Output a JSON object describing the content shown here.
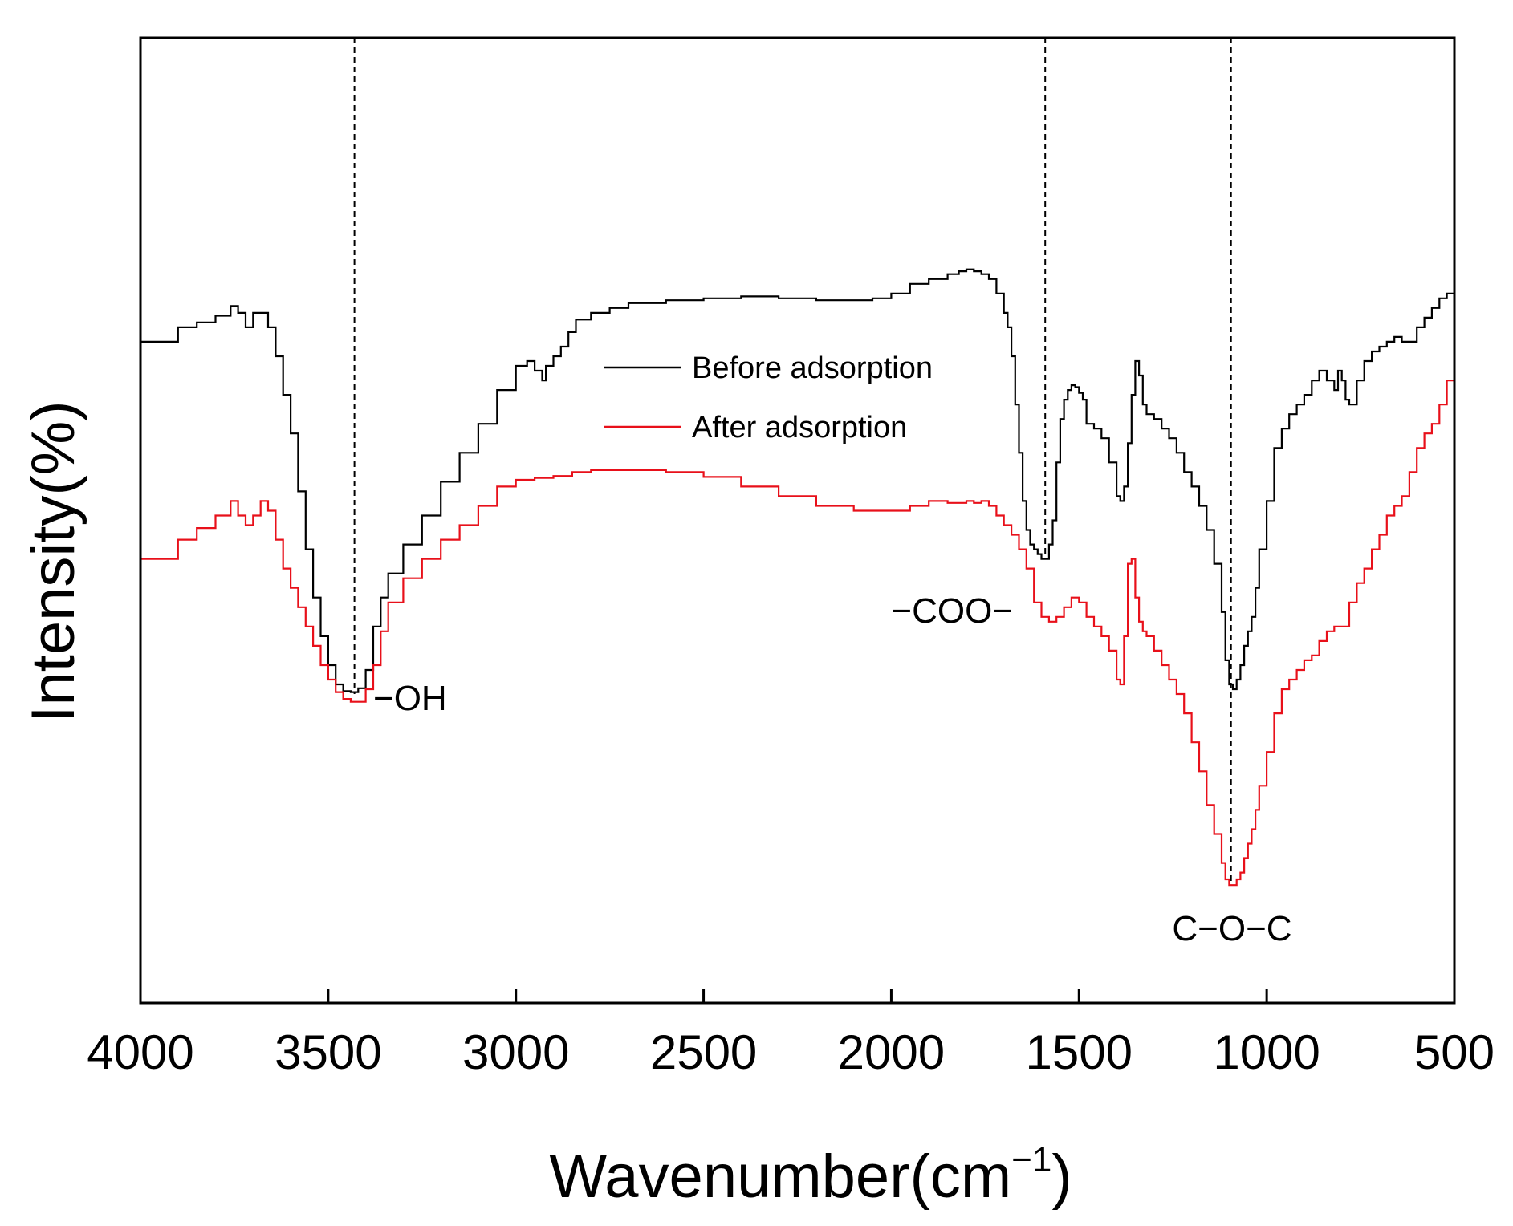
{
  "chart_data": {
    "type": "line",
    "title": "",
    "xlabel": "Wavenumber(cm",
    "xlabel_sup": "−1",
    "xlabel_close": ")",
    "ylabel": "Intensity(%)",
    "xlim": [
      4000,
      500
    ],
    "ylim": [
      0,
      100
    ],
    "x_reversed": true,
    "y_ticks_shown": false,
    "x_ticks": [
      4000,
      3500,
      3000,
      2500,
      2000,
      1500,
      1000,
      500
    ],
    "x_tick_labels": [
      "4000",
      "3500",
      "3000",
      "2500",
      "2000",
      "1500",
      "1000",
      "500"
    ],
    "grid": false,
    "legend": {
      "placement": "top-center"
    },
    "annotations": [
      {
        "text": "−OH",
        "x": 3430,
        "y": 32.0,
        "marker_line": true
      },
      {
        "text": "−COO−",
        "x": 1590,
        "y": 46.2,
        "marker_line": true
      },
      {
        "text": "C−O−C",
        "x": 1095,
        "y": 12.2,
        "marker_line": false
      }
    ],
    "series": [
      {
        "name": "Before adsorption",
        "color": "#000000",
        "x": [
          4000,
          3900,
          3850,
          3800,
          3760,
          3740,
          3720,
          3700,
          3680,
          3660,
          3640,
          3620,
          3600,
          3580,
          3560,
          3540,
          3520,
          3500,
          3480,
          3460,
          3440,
          3430,
          3420,
          3400,
          3380,
          3360,
          3340,
          3300,
          3250,
          3200,
          3150,
          3100,
          3050,
          3000,
          2970,
          2950,
          2930,
          2920,
          2900,
          2880,
          2860,
          2840,
          2800,
          2750,
          2700,
          2600,
          2500,
          2400,
          2350,
          2300,
          2200,
          2100,
          2050,
          2000,
          1950,
          1900,
          1850,
          1820,
          1800,
          1780,
          1760,
          1740,
          1720,
          1700,
          1690,
          1680,
          1670,
          1660,
          1650,
          1640,
          1630,
          1620,
          1610,
          1600,
          1590,
          1580,
          1570,
          1560,
          1550,
          1540,
          1530,
          1520,
          1510,
          1500,
          1490,
          1480,
          1460,
          1440,
          1420,
          1400,
          1390,
          1380,
          1370,
          1360,
          1350,
          1340,
          1330,
          1320,
          1300,
          1280,
          1260,
          1240,
          1220,
          1200,
          1180,
          1160,
          1140,
          1120,
          1110,
          1100,
          1090,
          1080,
          1070,
          1060,
          1050,
          1040,
          1030,
          1020,
          1000,
          980,
          960,
          940,
          920,
          900,
          880,
          860,
          840,
          820,
          810,
          800,
          790,
          780,
          760,
          740,
          720,
          700,
          680,
          660,
          640,
          620,
          600,
          580,
          560,
          540,
          520,
          500
        ],
        "y": [
          68.5,
          70,
          70.5,
          71.2,
          72.2,
          71.5,
          70,
          71.5,
          71.5,
          70,
          67,
          63,
          59,
          53,
          47,
          42,
          38,
          35,
          33,
          32.3,
          32.2,
          32.2,
          32.6,
          34.5,
          39,
          42,
          44.5,
          47.5,
          50.5,
          54,
          57,
          60,
          63.5,
          66,
          66.5,
          65.5,
          64.5,
          66,
          67,
          68,
          69.5,
          70.8,
          71.5,
          72,
          72.5,
          72.8,
          73,
          73.2,
          73.2,
          73,
          72.8,
          72.8,
          73,
          73.5,
          74.5,
          75,
          75.5,
          75.8,
          76,
          75.8,
          75.5,
          75,
          73.5,
          71.5,
          70,
          67,
          62,
          57,
          52,
          49,
          47.5,
          47,
          46.5,
          46,
          46,
          47.5,
          50,
          56,
          60.5,
          62.5,
          63.5,
          64,
          63.8,
          63.2,
          62.5,
          60,
          59.5,
          58.5,
          56,
          52.5,
          52,
          53.5,
          58,
          63,
          66.5,
          65,
          62,
          61,
          60.5,
          59.5,
          58.5,
          57,
          55,
          53.5,
          51.5,
          49,
          45.5,
          40.5,
          35.5,
          33,
          32.5,
          33.5,
          35,
          37,
          38.5,
          40,
          43,
          47,
          52,
          57.5,
          59.5,
          61,
          62,
          63,
          64.5,
          65.5,
          64.5,
          63.5,
          65.5,
          64.5,
          62.5,
          62,
          64.5,
          66.5,
          67.5,
          68,
          68.5,
          69,
          68.5,
          68.5,
          70,
          71,
          72,
          73,
          73.5,
          73.8
        ]
      },
      {
        "name": "After adsorption",
        "color": "#e8101a",
        "x": [
          4000,
          3900,
          3850,
          3800,
          3760,
          3740,
          3720,
          3700,
          3680,
          3660,
          3640,
          3620,
          3600,
          3580,
          3560,
          3540,
          3520,
          3500,
          3480,
          3460,
          3440,
          3430,
          3420,
          3400,
          3380,
          3360,
          3340,
          3300,
          3250,
          3200,
          3150,
          3100,
          3050,
          3000,
          2950,
          2900,
          2850,
          2800,
          2700,
          2600,
          2500,
          2400,
          2300,
          2200,
          2100,
          2000,
          1950,
          1900,
          1850,
          1800,
          1780,
          1760,
          1740,
          1720,
          1700,
          1680,
          1660,
          1640,
          1620,
          1600,
          1580,
          1560,
          1540,
          1520,
          1500,
          1480,
          1460,
          1440,
          1420,
          1400,
          1390,
          1380,
          1370,
          1360,
          1350,
          1340,
          1330,
          1320,
          1300,
          1280,
          1260,
          1240,
          1220,
          1200,
          1180,
          1160,
          1140,
          1120,
          1110,
          1100,
          1090,
          1080,
          1070,
          1060,
          1050,
          1040,
          1030,
          1020,
          1000,
          980,
          960,
          940,
          920,
          900,
          880,
          860,
          840,
          820,
          800,
          780,
          760,
          740,
          720,
          700,
          680,
          660,
          640,
          620,
          600,
          580,
          560,
          540,
          520,
          500
        ],
        "y": [
          46,
          48,
          49.2,
          50.5,
          52,
          50.5,
          49.5,
          50.5,
          52,
          51,
          48,
          45,
          43,
          41,
          39,
          37,
          35,
          33.5,
          32.2,
          31.5,
          31.2,
          31.2,
          31.2,
          32.5,
          35,
          38.5,
          41.5,
          44,
          46,
          48,
          49.5,
          51.5,
          53.5,
          54.2,
          54.4,
          54.6,
          55,
          55.2,
          55.2,
          55,
          54.5,
          53.5,
          52.5,
          51.5,
          51,
          51,
          51.5,
          52,
          51.8,
          52,
          51.8,
          52,
          51.5,
          50.5,
          49.5,
          48.5,
          47,
          45,
          41.5,
          40,
          39.5,
          40,
          41,
          42,
          41.5,
          40,
          39,
          38,
          36.5,
          33.5,
          33,
          38,
          45.5,
          46,
          42,
          39.5,
          38.5,
          38,
          36.5,
          35,
          33.5,
          32,
          30,
          27,
          24,
          20.5,
          17.5,
          14.5,
          12.8,
          12.2,
          12.2,
          12.8,
          13.5,
          15,
          16.5,
          18,
          20,
          22.5,
          26,
          30,
          32.5,
          33.5,
          34.5,
          35.5,
          36,
          37.5,
          38.5,
          39,
          39,
          41.5,
          43.5,
          45,
          47,
          48.5,
          50.5,
          51.5,
          52.5,
          55,
          57.5,
          59,
          60,
          62,
          64.5,
          66
        ]
      }
    ]
  }
}
